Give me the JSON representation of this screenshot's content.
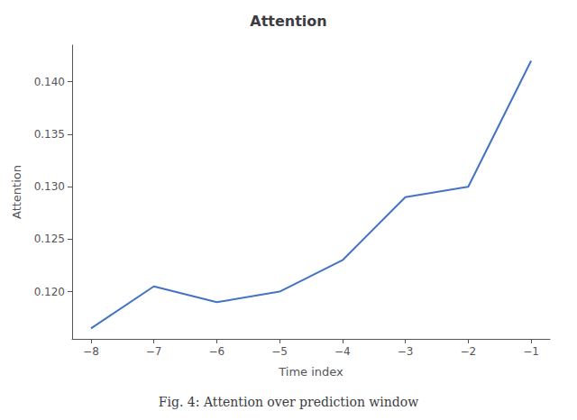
{
  "chart_data": {
    "type": "line",
    "title": "Attention",
    "xlabel": "Time index",
    "ylabel": "Attention",
    "caption": "Fig. 4: Attention over prediction window",
    "x": [
      -8,
      -7,
      -6,
      -5,
      -4,
      -3,
      -2,
      -1
    ],
    "values": [
      0.1165,
      0.1205,
      0.119,
      0.12,
      0.123,
      0.129,
      0.13,
      0.142
    ],
    "color": "#4472c4",
    "xlim": [
      -8.3,
      -0.7
    ],
    "xticks": [
      {
        "value": -8,
        "label": "−8"
      },
      {
        "value": -7,
        "label": "−7"
      },
      {
        "value": -6,
        "label": "−6"
      },
      {
        "value": -5,
        "label": "−5"
      },
      {
        "value": -4,
        "label": "−4"
      },
      {
        "value": -3,
        "label": "−3"
      },
      {
        "value": -2,
        "label": "−2"
      },
      {
        "value": -1,
        "label": "−1"
      }
    ],
    "ylim": [
      0.1155,
      0.1435
    ],
    "yticks": [
      {
        "value": 0.12,
        "label": "0.120"
      },
      0.125,
      {
        "value": 0.13,
        "label": "0.130"
      },
      0.135,
      {
        "value": 0.14,
        "label": "0.140"
      }
    ],
    "grid": false
  }
}
